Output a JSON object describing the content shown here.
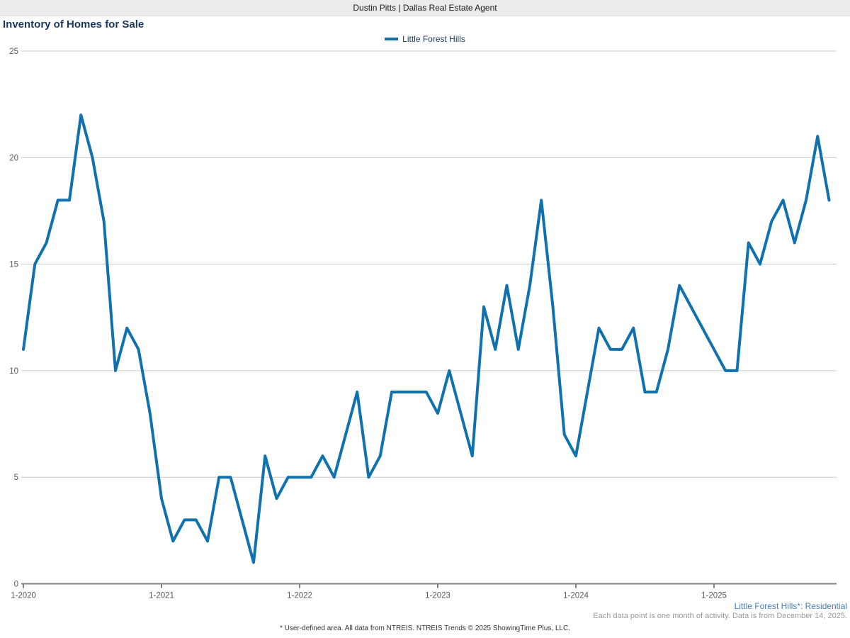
{
  "header": {
    "title": "Dustin Pitts | Dallas Real Estate Agent"
  },
  "chart": {
    "title": "Inventory of Homes for Sale",
    "legend_label": "Little Forest Hills"
  },
  "footer": {
    "series_note": "Little Forest Hills*: Residential",
    "data_note": "Each data point is one month of activity. Data is from December 14, 2025.",
    "disclaimer": "* User-defined area. All data from NTREIS. NTREIS Trends © 2025 ShowingTime Plus, LLC."
  },
  "colors": {
    "line": "#1071af",
    "title_text": "#17375e",
    "note_blue": "#4a7ebb",
    "gridline": "#c9c9c9",
    "axis": "#808080",
    "tick_label": "#595959"
  },
  "chart_data": {
    "type": "line",
    "title": "Inventory of Homes for Sale",
    "xlabel": "",
    "ylabel": "",
    "ylim": [
      0,
      25
    ],
    "grid": "horizontal",
    "legend_position": "top-center",
    "y_tick_labels": [
      0,
      5,
      10,
      15,
      20,
      25
    ],
    "x_tick_labels": [
      "1-2020",
      "1-2021",
      "1-2022",
      "1-2023",
      "1-2024",
      "1-2025"
    ],
    "x_start": "1-2020",
    "x_end": "11-2025",
    "frequency": "monthly",
    "series": [
      {
        "name": "Little Forest Hills",
        "color": "#1071af",
        "values": [
          11,
          15,
          16,
          18,
          18,
          22,
          20,
          17,
          10,
          12,
          11,
          8,
          4,
          2,
          3,
          3,
          2,
          5,
          5,
          3,
          1,
          6,
          4,
          5,
          5,
          5,
          6,
          5,
          7,
          9,
          5,
          6,
          9,
          9,
          9,
          9,
          8,
          10,
          8,
          6,
          13,
          11,
          14,
          11,
          14,
          18,
          13,
          7,
          6,
          9,
          12,
          11,
          11,
          12,
          9,
          9,
          11,
          14,
          13,
          12,
          11,
          10,
          10,
          16,
          15,
          17,
          18,
          16,
          18,
          21,
          18
        ]
      }
    ]
  }
}
